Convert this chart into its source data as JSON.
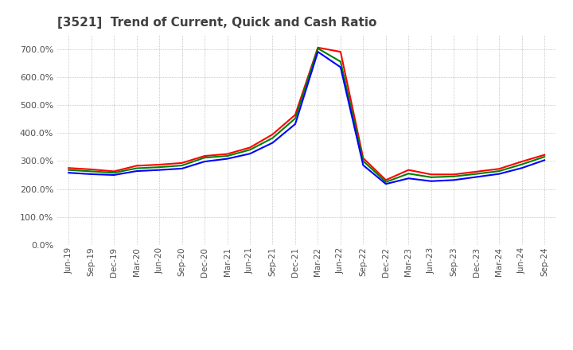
{
  "title": "[3521]  Trend of Current, Quick and Cash Ratio",
  "x_labels": [
    "Jun-19",
    "Sep-19",
    "Dec-19",
    "Mar-20",
    "Jun-20",
    "Sep-20",
    "Dec-20",
    "Mar-21",
    "Jun-21",
    "Sep-21",
    "Dec-21",
    "Mar-22",
    "Jun-22",
    "Sep-22",
    "Dec-22",
    "Mar-23",
    "Jun-23",
    "Sep-23",
    "Dec-23",
    "Mar-24",
    "Jun-24",
    "Sep-24"
  ],
  "current_ratio": [
    275,
    270,
    263,
    283,
    287,
    293,
    318,
    325,
    348,
    395,
    465,
    705,
    690,
    310,
    232,
    268,
    252,
    252,
    262,
    272,
    298,
    322
  ],
  "quick_ratio": [
    268,
    263,
    258,
    274,
    278,
    284,
    312,
    318,
    340,
    382,
    452,
    702,
    655,
    300,
    225,
    255,
    242,
    245,
    254,
    264,
    288,
    315
  ],
  "cash_ratio": [
    258,
    253,
    250,
    264,
    268,
    273,
    298,
    308,
    326,
    365,
    432,
    690,
    635,
    285,
    218,
    238,
    228,
    232,
    243,
    254,
    275,
    303
  ],
  "ylim": [
    0,
    750
  ],
  "yticks": [
    0,
    100,
    200,
    300,
    400,
    500,
    600,
    700
  ],
  "current_color": "#FF0000",
  "quick_color": "#008000",
  "cash_color": "#0000FF",
  "bg_color": "#ffffff",
  "grid_color": "#b0b0b0",
  "title_color": "#404040",
  "line_width": 1.5
}
